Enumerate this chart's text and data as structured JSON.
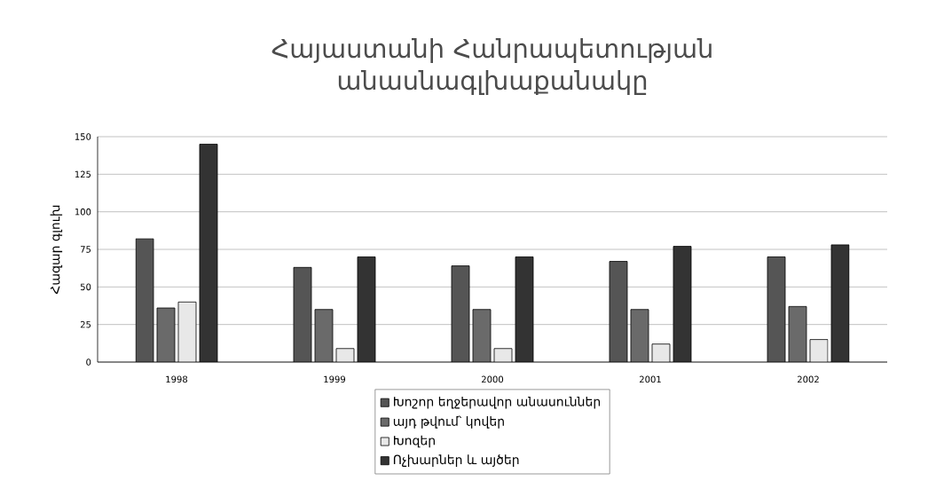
{
  "chart_data": {
    "type": "bar",
    "title": "Հայաստանի Հանրապետության անասնագլխաքանակը",
    "ylabel": "Հազար գլուխ",
    "categories": [
      "1998",
      "1999",
      "2000",
      "2001",
      "2002"
    ],
    "series": [
      {
        "name": "Խոշոր եղջերավոր անասուններ",
        "color": "#555555",
        "values": [
          82,
          63,
          64,
          67,
          70
        ]
      },
      {
        "name": "այդ թվում՝ կովեր",
        "color": "#6a6a6a",
        "values": [
          36,
          35,
          35,
          35,
          37
        ]
      },
      {
        "name": "Խոզեր",
        "color": "#e8e8e8",
        "values": [
          40,
          9,
          9,
          12,
          15
        ]
      },
      {
        "name": "Ոչխարներ և այծեր",
        "color": "#333333",
        "values": [
          145,
          70,
          70,
          77,
          78
        ]
      }
    ],
    "ylim": [
      0,
      150
    ],
    "yticks": [
      0,
      25,
      50,
      75,
      100,
      125,
      150
    ],
    "grid": "y",
    "legend": "bottom"
  }
}
